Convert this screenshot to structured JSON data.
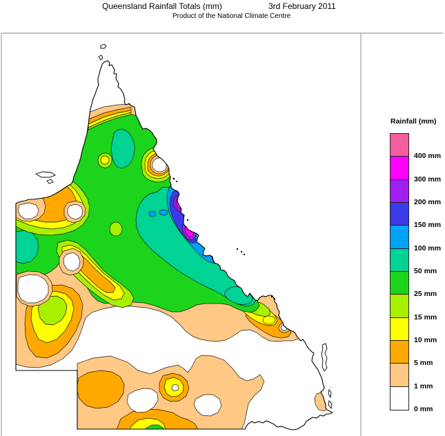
{
  "title": {
    "main": "Queensland Rainfall Totals (mm)",
    "date": "3rd February 2011",
    "subtitle": "Product of the National Climate Centre"
  },
  "legend": {
    "title": "Rainfall (mm)",
    "entries": [
      {
        "color": "pink",
        "tick": "400 mm"
      },
      {
        "color": "magenta",
        "tick": "300 mm"
      },
      {
        "color": "purple",
        "tick": "200 mm"
      },
      {
        "color": "indigo",
        "tick": "150 mm"
      },
      {
        "color": "lightblue",
        "tick": "100 mm"
      },
      {
        "color": "teal",
        "tick": "50 mm"
      },
      {
        "color": "green",
        "tick": "25 mm"
      },
      {
        "color": "ygreen",
        "tick": "15 mm"
      },
      {
        "color": "yellow",
        "tick": "10 mm"
      },
      {
        "color": "orange",
        "tick": "5 mm"
      },
      {
        "color": "tan",
        "tick": "1 mm"
      },
      {
        "color": "white",
        "tick": "0 mm"
      }
    ]
  },
  "palette": {
    "pink": "#F55F9E",
    "magenta": "#FF00FF",
    "purple": "#A01FF0",
    "indigo": "#3A3AE8",
    "lightblue": "#00A2F5",
    "teal": "#00D394",
    "green": "#1BD41B",
    "ygreen": "#A8EF00",
    "yellow": "#FFFF00",
    "orange": "#FFA800",
    "tan": "#FFC885",
    "white": "#FFFFFF"
  },
  "map": {
    "region": "Queensland",
    "frame_color": "#A0A0A0",
    "coast_color": "#000000",
    "contour_color": "#1B1B1B"
  }
}
